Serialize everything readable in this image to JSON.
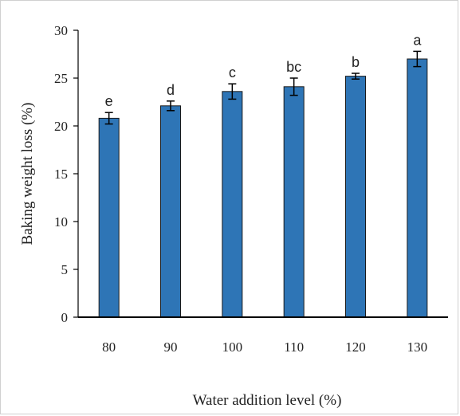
{
  "chart_data": {
    "type": "bar",
    "xlabel": "Water addition level (%)",
    "ylabel": "Baking weight loss (%)",
    "categories": [
      "80",
      "90",
      "100",
      "110",
      "120",
      "130"
    ],
    "values": [
      20.8,
      22.1,
      23.6,
      24.1,
      25.2,
      27.0
    ],
    "errors": [
      0.6,
      0.5,
      0.8,
      0.9,
      0.3,
      0.8
    ],
    "significance": [
      "e",
      "d",
      "c",
      "bc",
      "b",
      "a"
    ],
    "ylim": [
      0,
      30
    ],
    "yticks": [
      "0",
      "5",
      "10",
      "15",
      "20",
      "25",
      "30"
    ],
    "grid": false,
    "legend": "none",
    "colors": {
      "bar_fill": "#2e75b6",
      "bar_stroke": "#1a1a1a",
      "axis": "#000000"
    }
  }
}
